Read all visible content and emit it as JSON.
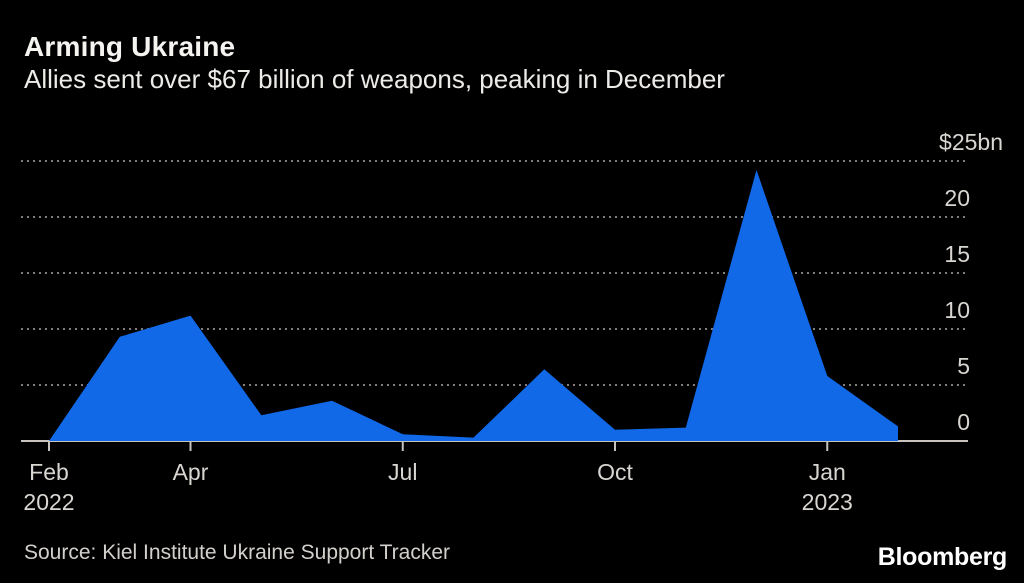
{
  "header": {
    "title": "Arming Ukraine",
    "subtitle": "Allies sent over $67 billion of weapons, peaking in December"
  },
  "footer": {
    "source": "Source: Kiel Institute Ukraine Support Tracker",
    "brand": "Bloomberg"
  },
  "chart_data": {
    "type": "area",
    "title": "Arming Ukraine",
    "subtitle": "Allies sent over $67 billion of weapons, peaking in December",
    "unit": "$bn",
    "x": [
      "Feb 2022",
      "Mar",
      "Apr",
      "May",
      "Jun",
      "Jul",
      "Aug",
      "Sep",
      "Oct",
      "Nov",
      "Dec",
      "Jan 2023",
      "Feb 2023"
    ],
    "values": [
      0,
      9.3,
      11.2,
      2.3,
      3.6,
      0.6,
      0.3,
      6.4,
      1.0,
      1.2,
      24.2,
      5.8,
      1.3
    ],
    "ylim": [
      0,
      25
    ],
    "yticks": [
      0,
      5,
      10,
      15,
      20,
      25
    ],
    "ytick_labels": [
      "0",
      "5",
      "10",
      "15",
      "20",
      "$25bn"
    ],
    "xticks": [
      {
        "index": 0,
        "line1": "Feb",
        "line2": "2022"
      },
      {
        "index": 2,
        "line1": "Apr",
        "line2": ""
      },
      {
        "index": 5,
        "line1": "Jul",
        "line2": ""
      },
      {
        "index": 8,
        "line1": "Oct",
        "line2": ""
      },
      {
        "index": 11,
        "line1": "Jan",
        "line2": "2023"
      }
    ],
    "grid": "horizontal-dotted",
    "legend": "none",
    "area_color": "#1169e8",
    "axis_color": "#c8c3bd",
    "grid_color": "#827e7a",
    "label_color": "#d9d6d2",
    "background_color": "#000000"
  }
}
